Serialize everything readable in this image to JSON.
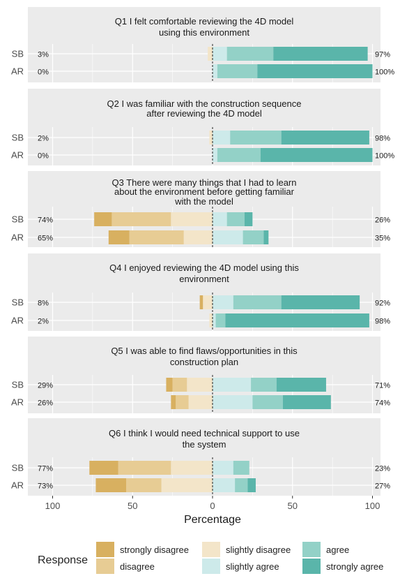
{
  "chart_data": {
    "type": "bar",
    "subtype": "diverging-stacked-likert",
    "xlabel": "Percentage",
    "x_ticks": [
      "100",
      "50",
      "0",
      "50",
      "100"
    ],
    "xlim": [
      -100,
      100
    ],
    "grid": true,
    "legend": {
      "title": "Response",
      "position": "bottom",
      "entries": [
        "strongly disagree",
        "disagree",
        "slightly disagree",
        "slightly agree",
        "agree",
        "strongly agree"
      ]
    },
    "colors": {
      "strongly disagree": "#d8b060",
      "disagree": "#e7cc94",
      "slightly disagree": "#f3e5c9",
      "slightly agree": "#cdeaea",
      "agree": "#93d1c7",
      "strongly agree": "#5ab5aa",
      "panel_bg": "#ebebeb",
      "strip_bg": "#ebebeb",
      "grid": "#ffffff",
      "zero_line": "#222222"
    },
    "panels": [
      {
        "title": "Q1 I felt comfortable reviewing the 4D model\nusing this environment",
        "rows": [
          {
            "group": "SB",
            "left_label": "3%",
            "right_label": "97%",
            "values": {
              "strongly disagree": 0,
              "disagree": 0,
              "slightly disagree": 3,
              "slightly agree": 9,
              "agree": 29,
              "strongly agree": 59
            }
          },
          {
            "group": "AR",
            "left_label": "0%",
            "right_label": "100%",
            "values": {
              "strongly disagree": 0,
              "disagree": 0,
              "slightly disagree": 0,
              "slightly agree": 3,
              "agree": 25,
              "strongly agree": 72
            }
          }
        ]
      },
      {
        "title": "Q2 I was familiar with the construction sequence\nafter reviewing the 4D model",
        "rows": [
          {
            "group": "SB",
            "left_label": "2%",
            "right_label": "98%",
            "values": {
              "strongly disagree": 0,
              "disagree": 0,
              "slightly disagree": 2,
              "slightly agree": 11,
              "agree": 32,
              "strongly agree": 55
            }
          },
          {
            "group": "AR",
            "left_label": "0%",
            "right_label": "100%",
            "values": {
              "strongly disagree": 0,
              "disagree": 0,
              "slightly disagree": 0,
              "slightly agree": 3,
              "agree": 27,
              "strongly agree": 70
            }
          }
        ]
      },
      {
        "title": "Q3 There were many things that I had to learn\nabout the environment before getting familiar\nwith the model",
        "rows": [
          {
            "group": "SB",
            "left_label": "74%",
            "right_label": "26%",
            "values": {
              "strongly disagree": 11,
              "disagree": 37,
              "slightly disagree": 26,
              "slightly agree": 9,
              "agree": 11,
              "strongly agree": 5
            }
          },
          {
            "group": "AR",
            "left_label": "65%",
            "right_label": "35%",
            "values": {
              "strongly disagree": 13,
              "disagree": 34,
              "slightly disagree": 18,
              "slightly agree": 19,
              "agree": 13,
              "strongly agree": 3
            }
          }
        ]
      },
      {
        "title": "Q4 I enjoyed reviewing the 4D model using this\nenvironment",
        "rows": [
          {
            "group": "SB",
            "left_label": "8%",
            "right_label": "92%",
            "values": {
              "strongly disagree": 2,
              "disagree": 0,
              "slightly disagree": 6,
              "slightly agree": 13,
              "agree": 30,
              "strongly agree": 49
            }
          },
          {
            "group": "AR",
            "left_label": "2%",
            "right_label": "98%",
            "values": {
              "strongly disagree": 0,
              "disagree": 0,
              "slightly disagree": 2,
              "slightly agree": 2,
              "agree": 6,
              "strongly agree": 90
            }
          }
        ]
      },
      {
        "title": "Q5 I was able to find flaws/opportunities in this\nconstruction plan",
        "rows": [
          {
            "group": "SB",
            "left_label": "29%",
            "right_label": "71%",
            "values": {
              "strongly disagree": 4,
              "disagree": 9,
              "slightly disagree": 16,
              "slightly agree": 24,
              "agree": 16,
              "strongly agree": 31
            }
          },
          {
            "group": "AR",
            "left_label": "26%",
            "right_label": "74%",
            "values": {
              "strongly disagree": 3,
              "disagree": 8,
              "slightly disagree": 15,
              "slightly agree": 25,
              "agree": 19,
              "strongly agree": 30
            }
          }
        ]
      },
      {
        "title": "Q6 I think I would need technical support to use\nthe system",
        "rows": [
          {
            "group": "SB",
            "left_label": "77%",
            "right_label": "23%",
            "values": {
              "strongly disagree": 18,
              "disagree": 33,
              "slightly disagree": 26,
              "slightly agree": 13,
              "agree": 10,
              "strongly agree": 0
            }
          },
          {
            "group": "AR",
            "left_label": "73%",
            "right_label": "27%",
            "values": {
              "strongly disagree": 19,
              "disagree": 22,
              "slightly disagree": 32,
              "slightly agree": 14,
              "agree": 8,
              "strongly agree": 5
            }
          }
        ]
      }
    ]
  }
}
